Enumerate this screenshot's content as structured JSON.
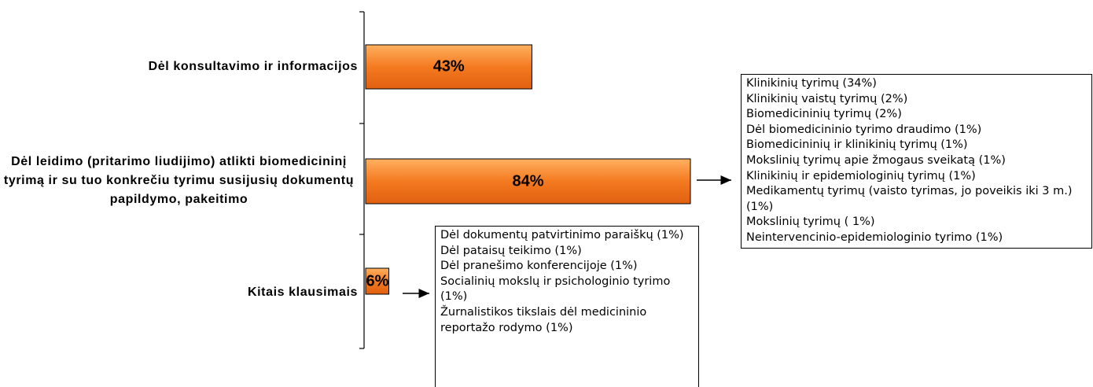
{
  "chart_data": {
    "type": "bar",
    "orientation": "horizontal",
    "categories": [
      "Dėl konsultavimo ir informacijos",
      "Dėl leidimo (pritarimo liudijimo) atlikti biomedicininį tyrimą ir su tuo konkrečiu tyrimu susijusių dokumentų papildymo, pakeitimo",
      "Kitais klausimais"
    ],
    "values": [
      43,
      84,
      6
    ],
    "value_labels": [
      "43%",
      "84%",
      "6%"
    ],
    "color": "#f47a20",
    "annotations": [
      {
        "category": 1,
        "items": [
          "Klinikinių tyrimų  (34%)",
          "Klinikinių vaistų tyrimų (2%)",
          "Biomedicininių tyrimų  (2%)",
          "Dėl biomedicininio tyrimo draudimo (1%)",
          "Biomedicininių ir klinikinių tyrimų (1%)",
          "Mokslinių tyrimų apie žmogaus sveikatą (1%)",
          "Klinikinių ir epidemiologinių tyrimų (1%)",
          "Medikamentų tyrimų (vaisto tyrimas, jo poveikis iki 3 m.) (1%)",
          "Mokslinių tyrimų ( 1%)",
          "Neintervencinio-epidemiologinio tyrimo (1%)"
        ]
      },
      {
        "category": 2,
        "items": [
          "Dėl dokumentų patvirtinimo paraiškų (1%)",
          "Dėl pataisų teikimo (1%)",
          "Dėl pranešimo konferencijoje (1%)",
          "Socialinių mokslų ir psichologinio tyrimo (1%)",
          "Žurnalistikos tikslais dėl medicininio reportažo rodymo (1%)"
        ]
      }
    ]
  }
}
